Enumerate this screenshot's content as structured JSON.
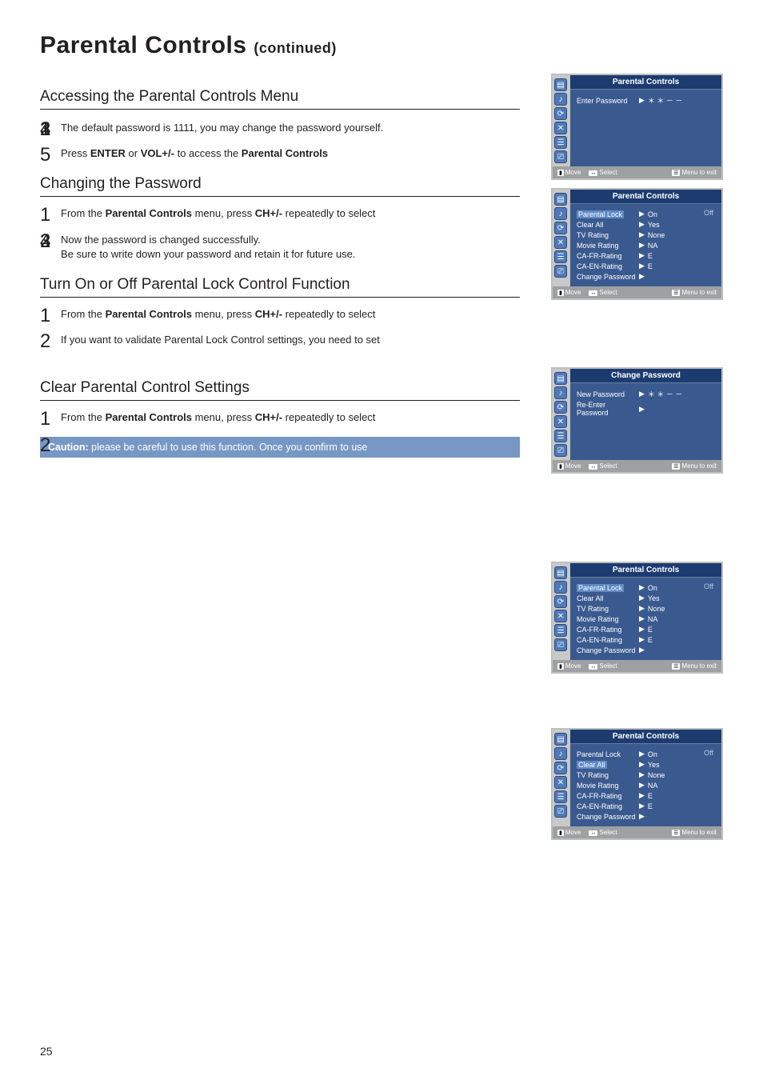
{
  "page": {
    "title": "Parental Controls",
    "continued": "(continued)",
    "page_number": "25"
  },
  "sections": {
    "access": {
      "heading": "Accessing the Parental Controls Menu",
      "steps": [
        {
          "text": ""
        },
        {
          "text": ""
        },
        {
          "text": ""
        },
        {
          "text": "The default password is 1111, you may change the password yourself."
        },
        {
          "pre": "Press ",
          "b1": "ENTER",
          "mid": " or ",
          "b2": "VOL+/-",
          "post": " to access the ",
          "b3": "Parental Controls"
        }
      ]
    },
    "change_pw": {
      "heading": "Changing the Password",
      "steps": [
        {
          "pre": "From the ",
          "b1": "Parental Controls",
          "mid": " menu, press ",
          "b2": "CH+/-",
          "post": " repeatedly to select"
        },
        {
          "text": ""
        },
        {
          "text": ""
        },
        {
          "text_a": "Now the password is changed successfully.",
          "text_b": "Be sure to write down your password and retain it for future use."
        }
      ]
    },
    "lock_fn": {
      "heading": "Turn On or Off Parental Lock Control Function",
      "steps": [
        {
          "pre": "From the ",
          "b1": "Parental Controls",
          "mid": " menu, press ",
          "b2": "CH+/-",
          "post": " repeatedly to select"
        },
        {
          "text": "If you want to validate Parental Lock Control settings, you need to set"
        }
      ]
    },
    "clear": {
      "heading": "Clear Parental Control Settings",
      "steps": [
        {
          "pre": "From the ",
          "b1": "Parental Controls",
          "mid": " menu, press ",
          "b2": "CH+/-",
          "post": " repeatedly to select"
        },
        {
          "text": ""
        }
      ],
      "caution_label": "Caution:",
      "caution_text": " please be careful to use this function. Once you confirm to use"
    }
  },
  "osd": {
    "footer": {
      "move": "Move",
      "select": "Select",
      "exit": "Menu to exit",
      "k1": "▮",
      "k2": "↔",
      "k3": "☰"
    },
    "icons": [
      "▤",
      "♪",
      "⟳",
      "✕",
      "☰",
      "⎚"
    ],
    "m1": {
      "title": "Parental Controls",
      "rows": [
        {
          "label": "Enter Password",
          "value": "＊ ＊ － －"
        }
      ]
    },
    "m2": {
      "title": "Parental Controls",
      "off": "Off",
      "rows": [
        {
          "label": "Parental Lock",
          "value": "On",
          "sel": true
        },
        {
          "label": "Clear All",
          "value": "Yes"
        },
        {
          "label": "TV Rating",
          "value": "None"
        },
        {
          "label": "Movie Rating",
          "value": "NA"
        },
        {
          "label": "CA-FR-Rating",
          "value": "E"
        },
        {
          "label": "CA-EN-Rating",
          "value": "E"
        },
        {
          "label": "Change Password",
          "value": ""
        }
      ]
    },
    "m3": {
      "title": "Change Password",
      "rows": [
        {
          "label": "New Password",
          "value": "＊ ＊ － －"
        },
        {
          "label": "Re-Enter Password",
          "value": ""
        }
      ]
    },
    "m4": {
      "title": "Parental Controls",
      "off": "Off",
      "rows": [
        {
          "label": "Parental Lock",
          "value": "On",
          "sel": true
        },
        {
          "label": "Clear All",
          "value": "Yes"
        },
        {
          "label": "TV Rating",
          "value": "None"
        },
        {
          "label": "Movie Rating",
          "value": "NA"
        },
        {
          "label": "CA-FR-Rating",
          "value": "E"
        },
        {
          "label": "CA-EN-Rating",
          "value": "E"
        },
        {
          "label": "Change Password",
          "value": ""
        }
      ]
    },
    "m5": {
      "title": "Parental Controls",
      "off": "Off",
      "rows": [
        {
          "label": "Parental Lock",
          "value": "On"
        },
        {
          "label": "Clear All",
          "value": "Yes",
          "sel": true
        },
        {
          "label": "TV Rating",
          "value": "None"
        },
        {
          "label": "Movie Rating",
          "value": "NA"
        },
        {
          "label": "CA-FR-Rating",
          "value": "E"
        },
        {
          "label": "CA-EN-Rating",
          "value": "E"
        },
        {
          "label": "Change Password",
          "value": ""
        }
      ]
    }
  }
}
